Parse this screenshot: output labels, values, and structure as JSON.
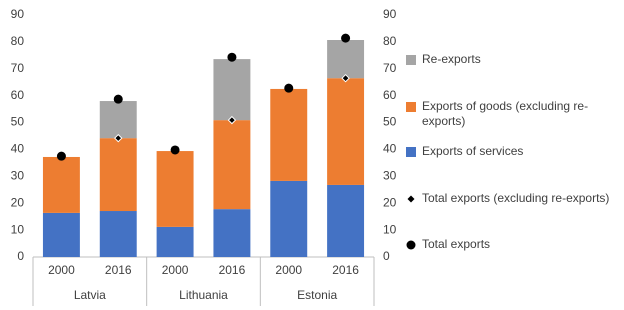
{
  "chart_data": {
    "type": "bar",
    "stacked": true,
    "categories": [
      "2000",
      "2016",
      "2000",
      "2016",
      "2000",
      "2016"
    ],
    "groups": [
      "Latvia",
      "Lithuania",
      "Estonia"
    ],
    "series": [
      {
        "name": "Exports of services",
        "color": "#4472c4",
        "kind": "bar",
        "values": [
          16.4,
          17.1,
          11.2,
          17.8,
          28.3,
          26.8
        ]
      },
      {
        "name": "Exports of goods (excluding re-exports)",
        "color": "#ed7d31",
        "kind": "bar",
        "values": [
          20.8,
          27.1,
          28.2,
          33.1,
          34.2,
          39.7
        ]
      },
      {
        "name": "Re-exports",
        "color": "#a5a5a5",
        "kind": "bar",
        "values": [
          null,
          13.8,
          null,
          22.7,
          null,
          14.2
        ]
      },
      {
        "name": "Total exports (excluding re-exports)",
        "color": "#000000",
        "kind": "diamond",
        "axis": "y2",
        "values": [
          null,
          44.2,
          null,
          50.9,
          null,
          66.5
        ]
      },
      {
        "name": "Total exports",
        "color": "#000000",
        "kind": "dot",
        "axis": "y2",
        "values": [
          37.5,
          58.7,
          39.8,
          74.3,
          62.8,
          81.4
        ]
      }
    ],
    "ylim": [
      0,
      90
    ],
    "yticks": [
      0,
      10,
      20,
      30,
      40,
      50,
      60,
      70,
      80,
      90
    ],
    "y2lim": [
      0,
      90
    ],
    "y2ticks": [
      0,
      10,
      20,
      30,
      40,
      50,
      60,
      70,
      80,
      90
    ],
    "grid": false,
    "legend": "right"
  }
}
